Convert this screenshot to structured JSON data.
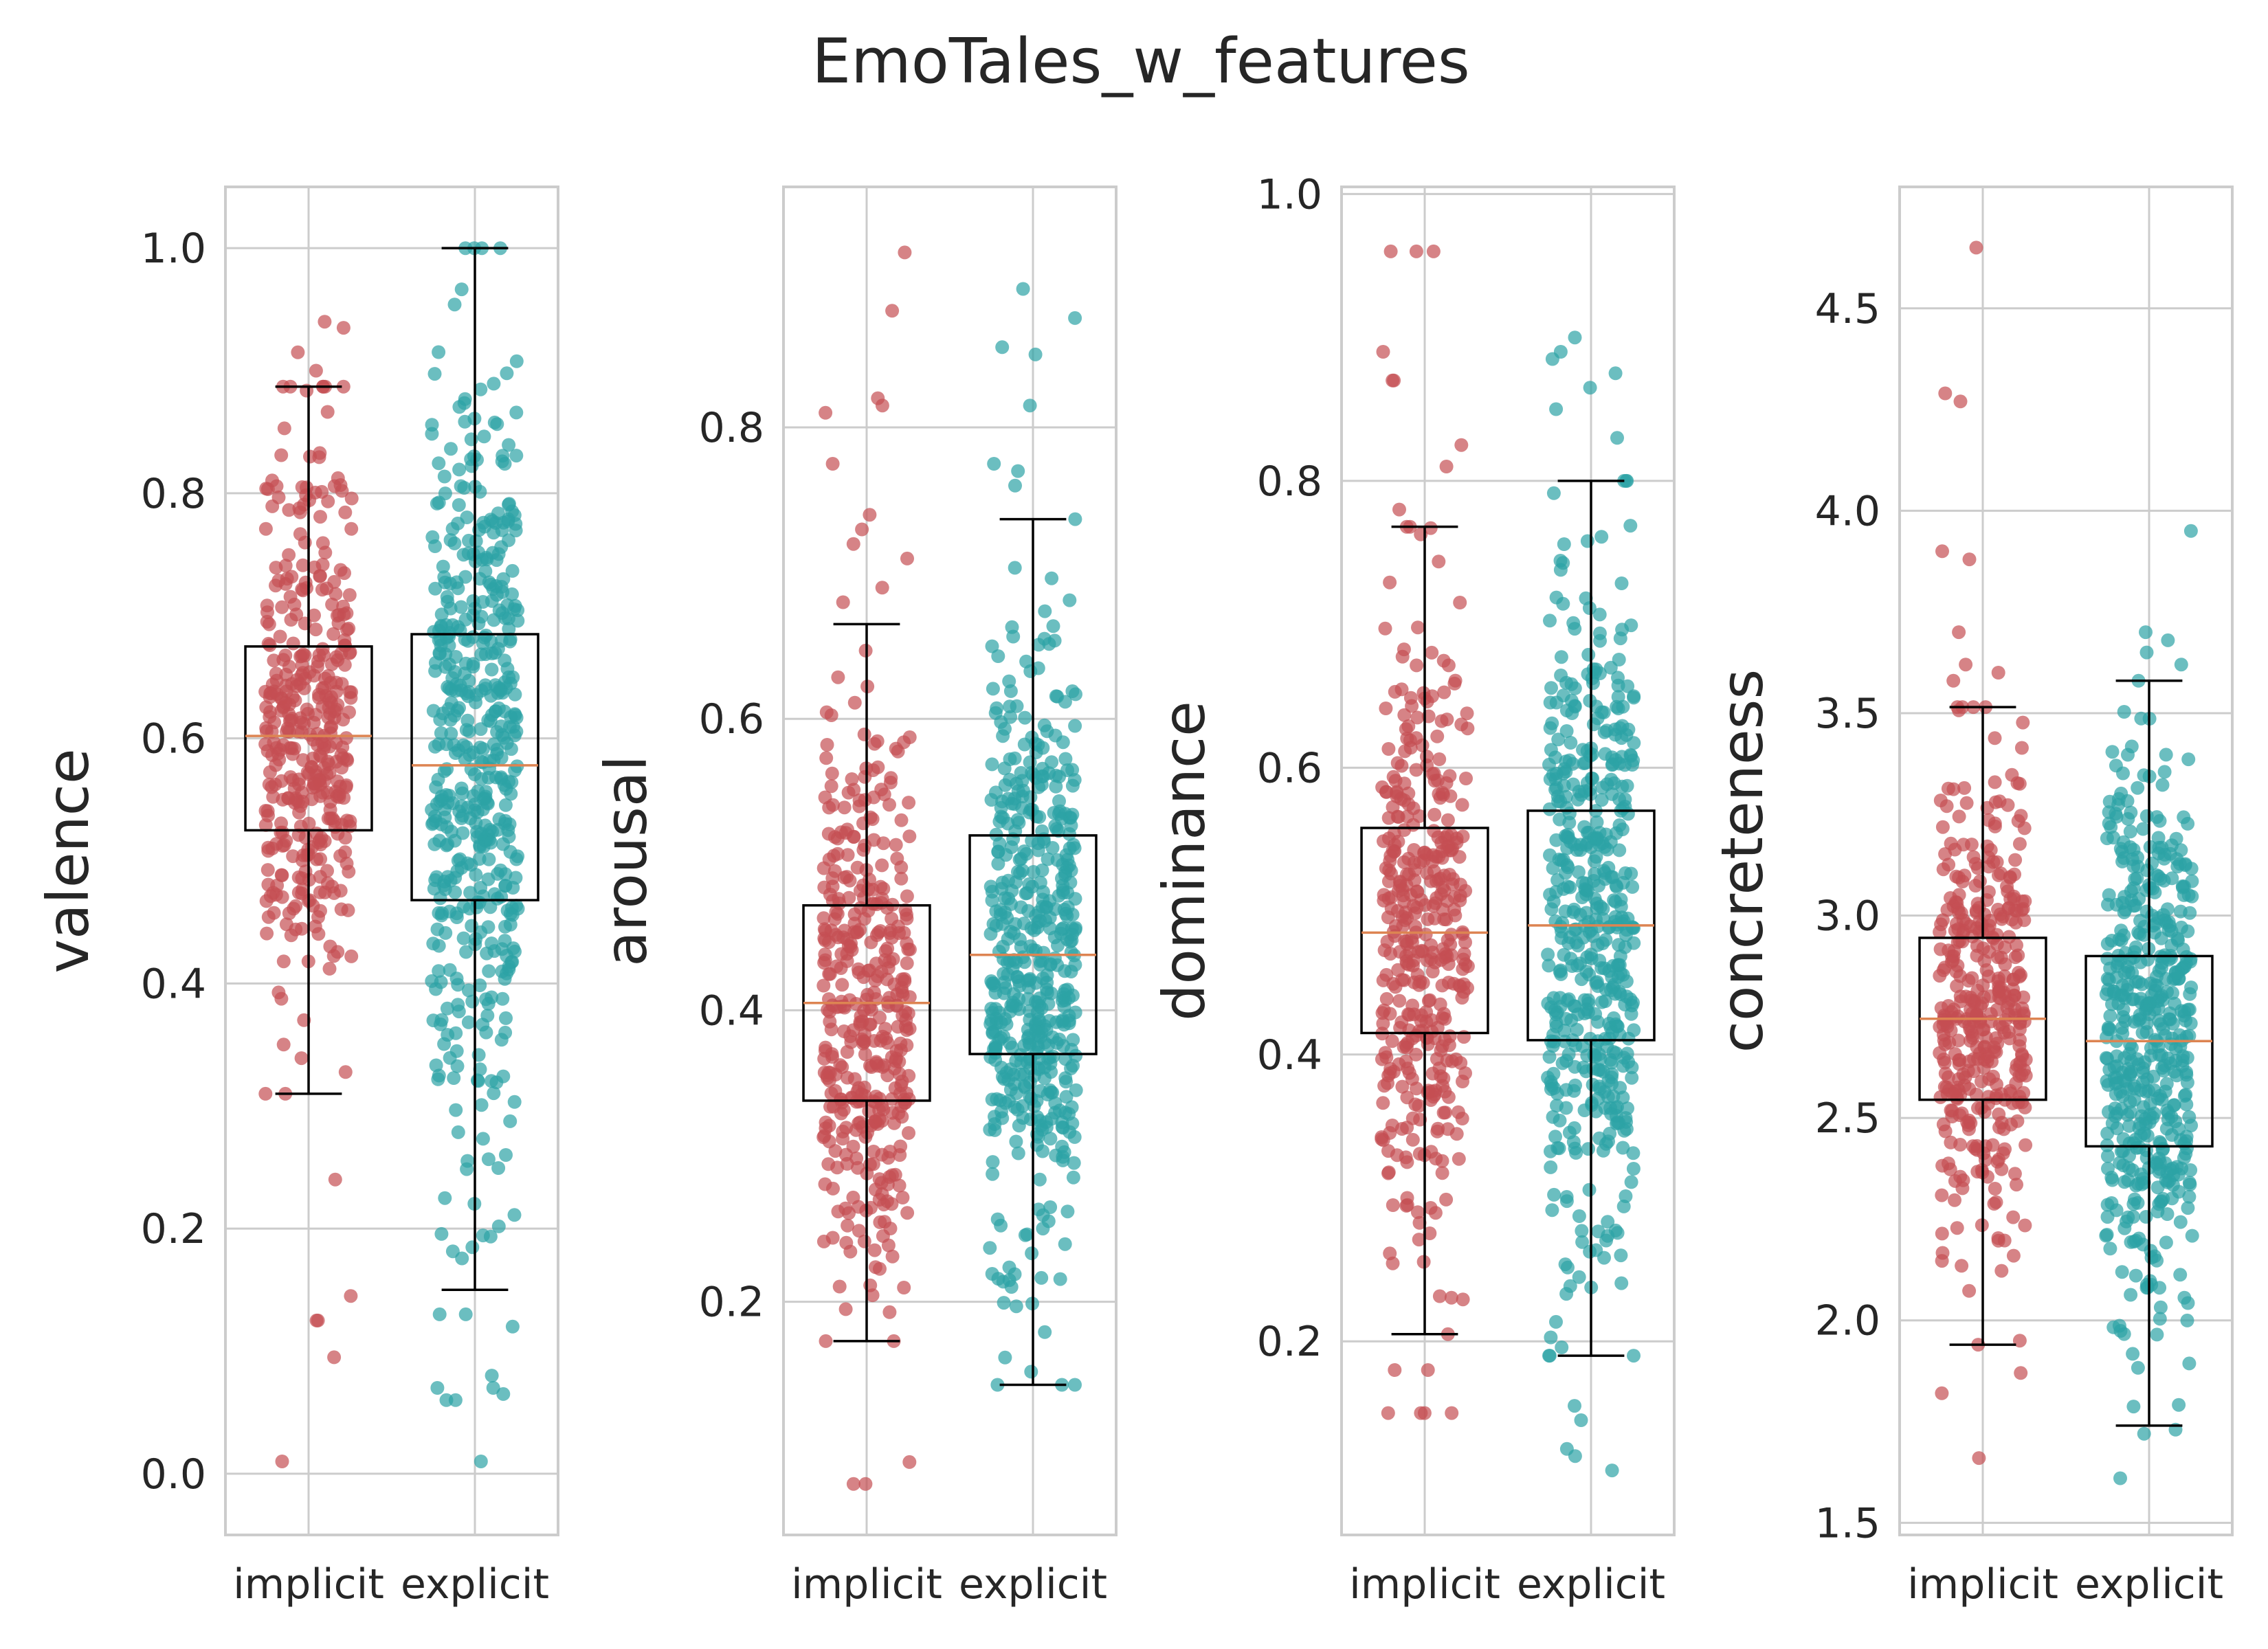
{
  "title": "EmoTales_w_features",
  "colors": {
    "implicit": "#c44e52",
    "explicit": "#2ca2a5",
    "median": "#dd8452",
    "grid": "#cccccc"
  },
  "chart_data": [
    {
      "type": "box",
      "ylabel": "valence",
      "categories": [
        "implicit",
        "explicit"
      ],
      "ylim": [
        -0.05,
        1.05
      ],
      "yticks": [
        0.0,
        0.2,
        0.4,
        0.6,
        0.8,
        1.0
      ],
      "ytick_labels": [
        "0.0",
        "0.2",
        "0.4",
        "0.6",
        "0.8",
        "1.0"
      ],
      "boxes": [
        {
          "name": "implicit",
          "whislo": 0.31,
          "q1": 0.525,
          "med": 0.602,
          "q3": 0.675,
          "whishi": 0.887,
          "n": 400,
          "outliers": [
            0.24,
            0.145,
            0.125,
            0.125,
            0.095,
            0.01,
            0.9,
            0.915,
            0.935,
            0.94
          ]
        },
        {
          "name": "explicit",
          "whislo": 0.15,
          "q1": 0.468,
          "med": 0.578,
          "q3": 0.685,
          "whishi": 1.0,
          "n": 500,
          "outliers": [
            0.12,
            0.13,
            0.13,
            0.07,
            0.065,
            0.06,
            0.06,
            0.08,
            0.07,
            0.01
          ]
        }
      ]
    },
    {
      "type": "box",
      "ylabel": "arousal",
      "categories": [
        "implicit",
        "explicit"
      ],
      "ylim": [
        0.04,
        0.965
      ],
      "yticks": [
        0.2,
        0.4,
        0.6,
        0.8
      ],
      "ytick_labels": [
        "0.2",
        "0.4",
        "0.6",
        "0.8"
      ],
      "boxes": [
        {
          "name": "implicit",
          "whislo": 0.173,
          "q1": 0.338,
          "med": 0.405,
          "q3": 0.472,
          "whishi": 0.665,
          "n": 400,
          "outliers": [
            0.92,
            0.88,
            0.82,
            0.815,
            0.81,
            0.775,
            0.74,
            0.73,
            0.72,
            0.71,
            0.69,
            0.68,
            0.09,
            0.075,
            0.075
          ]
        },
        {
          "name": "explicit",
          "whislo": 0.143,
          "q1": 0.37,
          "med": 0.438,
          "q3": 0.52,
          "whishi": 0.737,
          "n": 500,
          "outliers": [
            0.895,
            0.875,
            0.855,
            0.85,
            0.815,
            0.775,
            0.77,
            0.76
          ]
        }
      ]
    },
    {
      "type": "box",
      "ylabel": "dominance",
      "categories": [
        "implicit",
        "explicit"
      ],
      "ylim": [
        0.065,
        1.005
      ],
      "yticks": [
        0.2,
        0.4,
        0.6,
        0.8,
        1.0
      ],
      "ytick_labels": [
        "0.2",
        "0.4",
        "0.6",
        "0.8",
        "1.0"
      ],
      "boxes": [
        {
          "name": "implicit",
          "whislo": 0.205,
          "q1": 0.415,
          "med": 0.485,
          "q3": 0.558,
          "whishi": 0.768,
          "n": 400,
          "outliers": [
            0.96,
            0.96,
            0.96,
            0.89,
            0.87,
            0.87,
            0.825,
            0.81,
            0.78,
            0.18,
            0.18,
            0.15,
            0.15,
            0.15,
            0.15
          ]
        },
        {
          "name": "explicit",
          "whislo": 0.19,
          "q1": 0.41,
          "med": 0.49,
          "q3": 0.57,
          "whishi": 0.8,
          "n": 500,
          "outliers": [
            0.9,
            0.89,
            0.885,
            0.875,
            0.865,
            0.85,
            0.83,
            0.145,
            0.125,
            0.11,
            0.12,
            0.155
          ]
        }
      ]
    },
    {
      "type": "box",
      "ylabel": "concreteness",
      "categories": [
        "implicit",
        "explicit"
      ],
      "ylim": [
        1.47,
        4.8
      ],
      "yticks": [
        1.5,
        2.0,
        2.5,
        3.0,
        3.5,
        4.0,
        4.5
      ],
      "ytick_labels": [
        "1.5",
        "2.0",
        "2.5",
        "3.0",
        "3.5",
        "4.0",
        "4.5"
      ],
      "boxes": [
        {
          "name": "implicit",
          "whislo": 1.94,
          "q1": 2.545,
          "med": 2.745,
          "q3": 2.945,
          "whishi": 3.515,
          "n": 400,
          "outliers": [
            4.65,
            4.29,
            4.27,
            3.9,
            3.88,
            3.7,
            3.62,
            3.6,
            3.58,
            1.95,
            1.87,
            1.82,
            1.66
          ]
        },
        {
          "name": "explicit",
          "whislo": 1.74,
          "q1": 2.43,
          "med": 2.69,
          "q3": 2.9,
          "whishi": 3.58,
          "n": 500,
          "outliers": [
            3.95,
            3.7,
            3.68,
            3.65,
            3.62,
            1.72,
            1.61,
            1.73
          ]
        }
      ]
    }
  ]
}
